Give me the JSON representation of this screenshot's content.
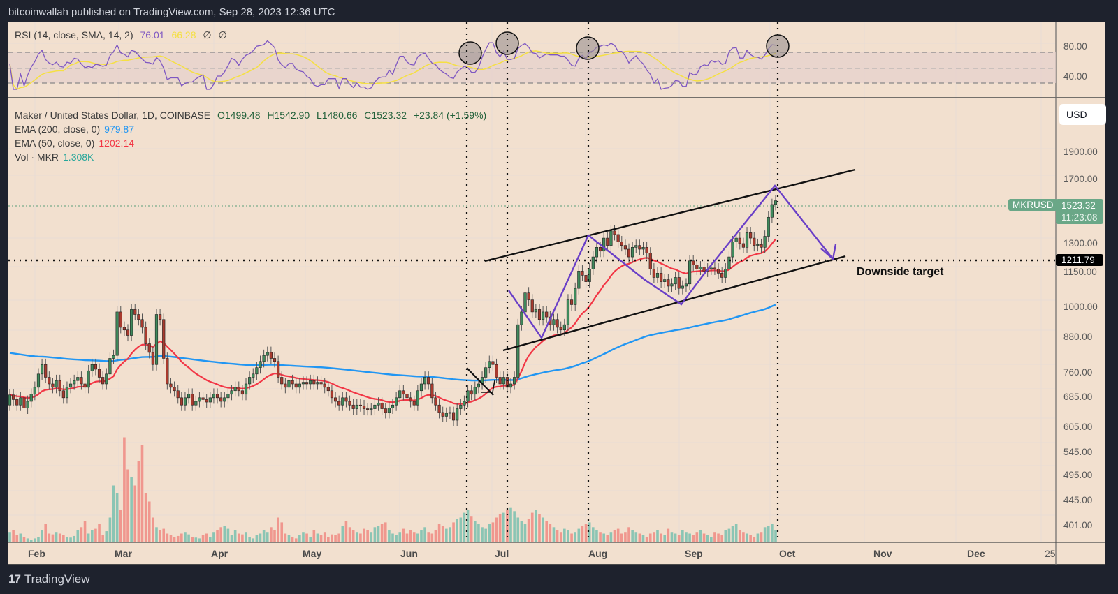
{
  "header": {
    "publisher_line": "bitcoinwallah published on TradingView.com, Sep 28, 2023 12:36 UTC"
  },
  "rsi_pane": {
    "label": "RSI (14, close, SMA, 14, 2)",
    "rsi_value": "76.01",
    "sma_value": "66.28",
    "extra1": "∅",
    "extra2": "∅",
    "axis_ticks": [
      "80.00",
      "40.00"
    ],
    "colors": {
      "rsi": "#7e57c2",
      "sma": "#f5e042",
      "band": "#e5d0cc"
    }
  },
  "main_pane": {
    "symbol_line": "Maker / United States Dollar, 1D, COINBASE",
    "ohlc": {
      "open": "O1499.48",
      "high": "H1542.90",
      "low": "L1480.66",
      "close": "C1523.32",
      "change": "+23.84 (+1.59%)"
    },
    "ema200": {
      "label": "EMA (200, close, 0)",
      "value": "979.87",
      "color": "#2196f3"
    },
    "ema50": {
      "label": "EMA (50, close, 0)",
      "value": "1202.14",
      "color": "#f23645"
    },
    "volume": {
      "label": "Vol · MKR",
      "value": "1.308K",
      "color": "#26a69a"
    },
    "currency_button": "USD",
    "price_axis": [
      "1900.00",
      "1700.00",
      "1300.00",
      "1150.00",
      "1000.00",
      "880.00",
      "760.00",
      "685.00",
      "605.00",
      "545.00",
      "495.00",
      "445.00",
      "401.00"
    ],
    "last_price_symbol": "MKRUSD",
    "last_price": "1523.32",
    "countdown": "11:23:08",
    "target_price": "1211.79",
    "annotation": "Downside target"
  },
  "time_axis": [
    "Feb",
    "Mar",
    "Apr",
    "May",
    "Jun",
    "Jul",
    "Aug",
    "Sep",
    "Oct",
    "Nov",
    "Dec",
    "25"
  ],
  "footer": {
    "brand": "TradingView",
    "logo": "17"
  },
  "chart_data": {
    "type": "candlestick",
    "title": "Maker / United States Dollar, 1D, COINBASE",
    "xlabel": "",
    "ylabel": "USD (log scale)",
    "ylim": [
      380,
      2000
    ],
    "x": [
      "Feb",
      "Mar",
      "Apr",
      "May",
      "Jun",
      "Jul",
      "Aug",
      "Sep",
      "Oct"
    ],
    "series": [
      {
        "name": "MKRUSD close (approx, monthly samples)",
        "values": [
          690,
          830,
          700,
          680,
          630,
          720,
          1250,
          1080,
          1523.32
        ]
      },
      {
        "name": "EMA 200",
        "values": [
          800,
          800,
          780,
          760,
          730,
          720,
          800,
          930,
          979.87
        ]
      },
      {
        "name": "EMA 50",
        "values": [
          650,
          760,
          740,
          690,
          660,
          700,
          1000,
          1120,
          1202.14
        ]
      }
    ],
    "annotations": [
      "Ascending channel",
      "Downside target 1211.79",
      "RSI overbought circles at 4 dates"
    ],
    "last": {
      "open": 1499.48,
      "high": 1542.9,
      "low": 1480.66,
      "close": 1523.32,
      "change": 23.84,
      "change_pct": 1.59
    },
    "rsi": {
      "value": 76.01,
      "sma": 66.28,
      "levels": [
        80,
        40
      ]
    }
  },
  "candle_series": [
    [
      640,
      668
    ],
    [
      668,
      655
    ],
    [
      655,
      640
    ],
    [
      640,
      660
    ],
    [
      660,
      632
    ],
    [
      632,
      650
    ],
    [
      650,
      670
    ],
    [
      670,
      690
    ],
    [
      690,
      730
    ],
    [
      730,
      760
    ],
    [
      760,
      720
    ],
    [
      720,
      700
    ],
    [
      700,
      690
    ],
    [
      690,
      710
    ],
    [
      710,
      680
    ],
    [
      680,
      660
    ],
    [
      660,
      690
    ],
    [
      690,
      700
    ],
    [
      700,
      710
    ],
    [
      710,
      720
    ],
    [
      720,
      700
    ],
    [
      700,
      690
    ],
    [
      690,
      740
    ],
    [
      740,
      760
    ],
    [
      760,
      745
    ],
    [
      745,
      720
    ],
    [
      720,
      700
    ],
    [
      700,
      730
    ],
    [
      730,
      780
    ],
    [
      780,
      790
    ],
    [
      790,
      950
    ],
    [
      950,
      890
    ],
    [
      890,
      880
    ],
    [
      880,
      860
    ],
    [
      860,
      960
    ],
    [
      960,
      940
    ],
    [
      940,
      920
    ],
    [
      920,
      890
    ],
    [
      890,
      830
    ],
    [
      830,
      800
    ],
    [
      800,
      760
    ],
    [
      760,
      940
    ],
    [
      940,
      920
    ],
    [
      920,
      780
    ],
    [
      780,
      700
    ],
    [
      700,
      690
    ],
    [
      690,
      680
    ],
    [
      680,
      660
    ],
    [
      660,
      640
    ],
    [
      640,
      660
    ],
    [
      660,
      670
    ],
    [
      670,
      640
    ],
    [
      640,
      650
    ],
    [
      650,
      660
    ],
    [
      660,
      655
    ],
    [
      655,
      648
    ],
    [
      648,
      660
    ],
    [
      660,
      670
    ],
    [
      670,
      660
    ],
    [
      660,
      650
    ],
    [
      650,
      660
    ],
    [
      660,
      670
    ],
    [
      670,
      680
    ],
    [
      680,
      690
    ],
    [
      690,
      680
    ],
    [
      680,
      670
    ],
    [
      670,
      700
    ],
    [
      700,
      720
    ],
    [
      720,
      730
    ],
    [
      730,
      750
    ],
    [
      750,
      770
    ],
    [
      770,
      790
    ],
    [
      790,
      800
    ],
    [
      800,
      780
    ],
    [
      780,
      770
    ],
    [
      770,
      720
    ],
    [
      720,
      700
    ],
    [
      700,
      690
    ],
    [
      690,
      710
    ],
    [
      710,
      700
    ],
    [
      700,
      690
    ],
    [
      690,
      700
    ],
    [
      700,
      705
    ],
    [
      705,
      700
    ],
    [
      700,
      710
    ],
    [
      710,
      700
    ],
    [
      700,
      705
    ],
    [
      705,
      700
    ],
    [
      700,
      690
    ],
    [
      690,
      680
    ],
    [
      680,
      660
    ],
    [
      660,
      650
    ],
    [
      650,
      640
    ],
    [
      640,
      660
    ],
    [
      660,
      650
    ],
    [
      650,
      640
    ],
    [
      640,
      630
    ],
    [
      630,
      640
    ],
    [
      640,
      638
    ],
    [
      638,
      630
    ],
    [
      630,
      628
    ],
    [
      628,
      630
    ],
    [
      630,
      640
    ],
    [
      640,
      645
    ],
    [
      645,
      630
    ],
    [
      630,
      620
    ],
    [
      620,
      632
    ],
    [
      632,
      640
    ],
    [
      640,
      660
    ],
    [
      660,
      680
    ],
    [
      680,
      670
    ],
    [
      670,
      660
    ],
    [
      660,
      650
    ],
    [
      650,
      640
    ],
    [
      640,
      680
    ],
    [
      680,
      700
    ],
    [
      700,
      720
    ],
    [
      720,
      700
    ],
    [
      700,
      660
    ],
    [
      660,
      640
    ],
    [
      640,
      620
    ],
    [
      620,
      610
    ],
    [
      610,
      618
    ],
    [
      618,
      620
    ],
    [
      620,
      600
    ],
    [
      600,
      630
    ],
    [
      630,
      640
    ],
    [
      640,
      650
    ],
    [
      650,
      680
    ],
    [
      680,
      670
    ],
    [
      670,
      690
    ],
    [
      690,
      700
    ],
    [
      700,
      720
    ],
    [
      720,
      750
    ],
    [
      750,
      770
    ],
    [
      770,
      760
    ],
    [
      760,
      720
    ],
    [
      720,
      700
    ],
    [
      700,
      720
    ],
    [
      720,
      690
    ],
    [
      690,
      700
    ],
    [
      700,
      720
    ],
    [
      720,
      900
    ],
    [
      900,
      950
    ],
    [
      950,
      1030
    ],
    [
      1030,
      1000
    ],
    [
      1000,
      950
    ],
    [
      950,
      960
    ],
    [
      960,
      920
    ],
    [
      920,
      950
    ],
    [
      950,
      930
    ],
    [
      930,
      900
    ],
    [
      900,
      920
    ],
    [
      920,
      890
    ],
    [
      890,
      880
    ],
    [
      880,
      900
    ],
    [
      900,
      1000
    ],
    [
      1000,
      980
    ],
    [
      980,
      1050
    ],
    [
      1050,
      1130
    ],
    [
      1130,
      1110
    ],
    [
      1110,
      1080
    ],
    [
      1080,
      1140
    ],
    [
      1140,
      1200
    ],
    [
      1200,
      1250
    ],
    [
      1250,
      1230
    ],
    [
      1230,
      1300
    ],
    [
      1300,
      1260
    ],
    [
      1260,
      1340
    ],
    [
      1340,
      1320
    ],
    [
      1320,
      1280
    ],
    [
      1280,
      1260
    ],
    [
      1260,
      1240
    ],
    [
      1240,
      1200
    ],
    [
      1200,
      1250
    ],
    [
      1250,
      1260
    ],
    [
      1260,
      1240
    ],
    [
      1240,
      1250
    ],
    [
      1250,
      1220
    ],
    [
      1220,
      1140
    ],
    [
      1140,
      1100
    ],
    [
      1100,
      1120
    ],
    [
      1120,
      1080
    ],
    [
      1080,
      1090
    ],
    [
      1090,
      1060
    ],
    [
      1060,
      1070
    ],
    [
      1070,
      1100
    ],
    [
      1100,
      1050
    ],
    [
      1050,
      1060
    ],
    [
      1060,
      1070
    ],
    [
      1070,
      1180
    ],
    [
      1180,
      1160
    ],
    [
      1160,
      1140
    ],
    [
      1140,
      1150
    ],
    [
      1150,
      1130
    ],
    [
      1130,
      1140
    ],
    [
      1140,
      1145
    ],
    [
      1145,
      1140
    ],
    [
      1140,
      1120
    ],
    [
      1120,
      1100
    ],
    [
      1100,
      1140
    ],
    [
      1140,
      1200
    ],
    [
      1200,
      1280
    ],
    [
      1280,
      1300
    ],
    [
      1300,
      1270
    ],
    [
      1270,
      1250
    ],
    [
      1250,
      1330
    ],
    [
      1330,
      1300
    ],
    [
      1300,
      1260
    ],
    [
      1260,
      1265
    ],
    [
      1265,
      1250
    ],
    [
      1250,
      1310
    ],
    [
      1310,
      1420
    ],
    [
      1420,
      1499
    ],
    [
      1499.48,
      1523.32
    ]
  ],
  "volume_series": [
    12,
    14,
    8,
    10,
    6,
    4,
    2,
    4,
    6,
    14,
    22,
    10,
    9,
    12,
    10,
    8,
    6,
    5,
    7,
    14,
    18,
    26,
    10,
    14,
    16,
    22,
    8,
    13,
    30,
    70,
    60,
    40,
    130,
    90,
    80,
    70,
    100,
    120,
    60,
    50,
    30,
    18,
    14,
    16,
    10,
    8,
    6,
    7,
    10,
    12,
    9,
    6,
    5,
    4,
    8,
    10,
    6,
    12,
    14,
    18,
    20,
    16,
    8,
    14,
    10,
    9,
    12,
    6,
    4,
    8,
    10,
    14,
    12,
    18,
    14,
    30,
    24,
    10,
    8,
    6,
    4,
    8,
    12,
    10,
    6,
    14,
    10,
    8,
    12,
    6,
    9,
    8,
    10,
    20,
    26,
    18,
    14,
    12,
    10,
    16,
    14,
    12,
    18,
    20,
    22,
    24,
    14,
    10,
    8,
    12,
    16,
    10,
    14,
    12,
    10,
    14,
    18,
    12,
    10,
    14,
    22,
    20,
    16,
    18,
    24,
    28,
    30,
    36,
    40,
    32,
    26,
    22,
    18,
    16,
    22,
    24,
    30,
    34,
    36,
    40,
    42,
    38,
    30,
    26,
    22,
    28,
    36,
    40,
    34,
    30,
    26,
    22,
    18,
    14,
    12,
    16,
    14,
    10,
    12,
    16,
    20,
    22,
    24,
    18,
    14,
    12,
    10,
    8,
    12,
    14,
    16,
    10,
    12,
    18,
    14,
    12,
    10,
    8,
    6,
    10,
    12,
    14,
    10,
    8,
    16,
    12,
    10,
    8,
    14,
    12,
    10,
    8,
    12,
    14,
    10,
    8,
    6,
    12,
    10,
    8,
    14,
    16,
    20,
    22,
    14,
    12,
    10,
    8,
    6,
    10,
    12,
    18,
    20,
    22,
    14
  ]
}
